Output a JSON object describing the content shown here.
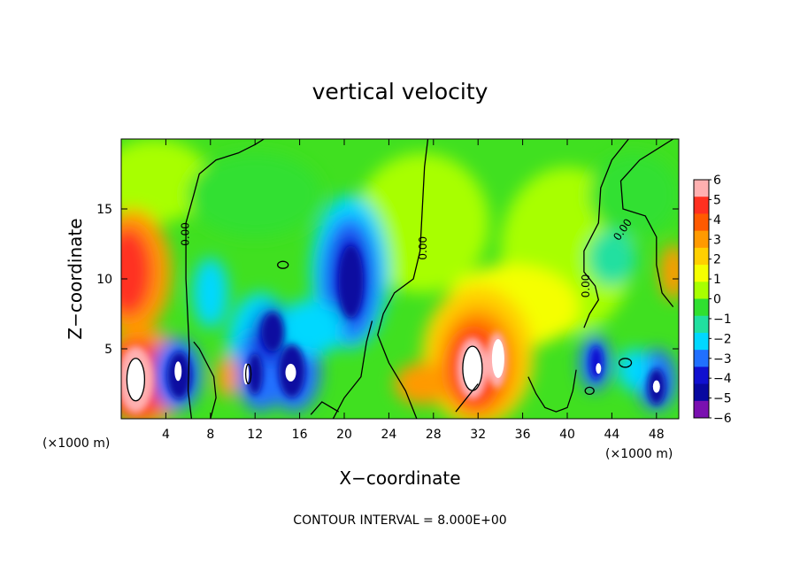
{
  "chart_data": {
    "type": "heatmap",
    "title": "vertical velocity",
    "xlabel": "X−coordinate",
    "ylabel": "Z−coordinate",
    "x_unit_left": "(×1000 m)",
    "x_unit_right": "(×1000 m)",
    "xlim": [
      0,
      50
    ],
    "ylim": [
      0,
      20
    ],
    "xticks": [
      4,
      8,
      12,
      16,
      20,
      24,
      28,
      32,
      36,
      40,
      44,
      48
    ],
    "yticks": [
      5,
      10,
      15
    ],
    "colorbar": {
      "levels": [
        6,
        5,
        4,
        3,
        2,
        1,
        0,
        -1,
        -2,
        -3,
        -4,
        -5,
        -6
      ],
      "labels": [
        "6",
        "5",
        "4",
        "3",
        "2",
        "1",
        "0",
        "−1",
        "−2",
        "−3",
        "−4",
        "−5",
        "−6"
      ],
      "colors": [
        "#ffb0b0",
        "#ff3020",
        "#ff5a00",
        "#ff9a00",
        "#ffd000",
        "#f5ff00",
        "#a8ff00",
        "#30e030",
        "#20e0a0",
        "#00d8ff",
        "#2070ff",
        "#1010d0",
        "#0808a0",
        "#7a10b0"
      ]
    },
    "contour_label": "0.00",
    "contour_interval_text": "CONTOUR INTERVAL = 8.000E+00",
    "features": [
      {
        "x": 0.8,
        "z": 10.5,
        "w": 4,
        "kind": "updraft"
      },
      {
        "x": 1.2,
        "z": 2.8,
        "w": 7,
        "kind": "updraft"
      },
      {
        "x": 5.0,
        "z": 3.0,
        "w": -6,
        "kind": "downdraft"
      },
      {
        "x": 12.5,
        "z": 3.2,
        "w": -5,
        "kind": "downdraft"
      },
      {
        "x": 15.2,
        "z": 3.3,
        "w": -6,
        "kind": "downdraft"
      },
      {
        "x": 20.5,
        "z": 10.0,
        "w": -5,
        "kind": "downdraft"
      },
      {
        "x": 31.5,
        "z": 3.5,
        "w": 7,
        "kind": "updraft"
      },
      {
        "x": 33.5,
        "z": 4.5,
        "w": 6,
        "kind": "updraft"
      },
      {
        "x": 42.5,
        "z": 3.8,
        "w": -5,
        "kind": "downdraft"
      },
      {
        "x": 48.0,
        "z": 2.3,
        "w": -6,
        "kind": "downdraft"
      }
    ]
  }
}
